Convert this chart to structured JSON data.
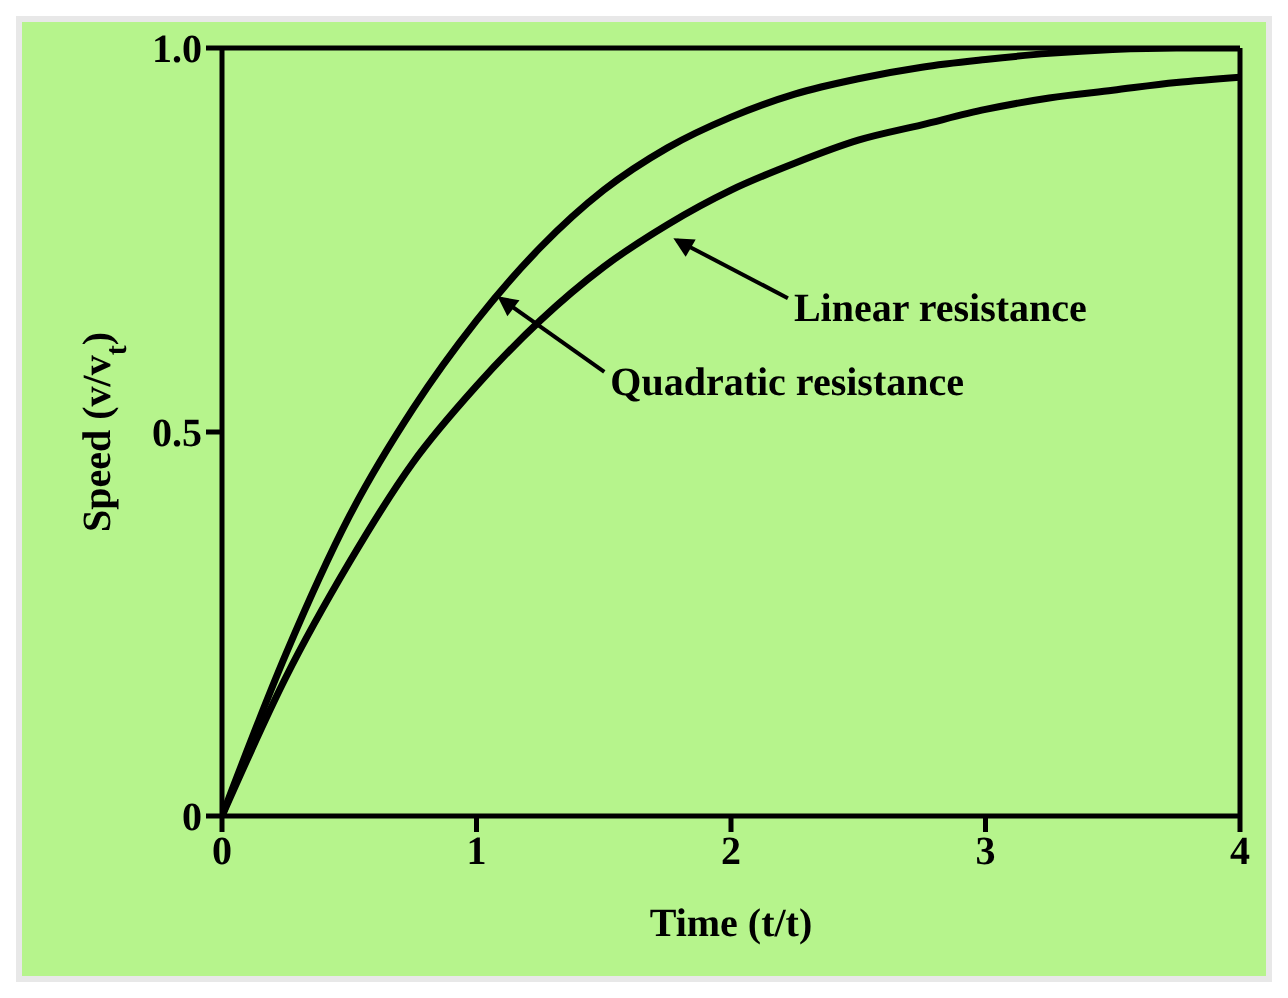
{
  "chart_data": {
    "type": "line",
    "xlabel": "Time (t/t)",
    "ylabel": "Speed (v/v$_{t}$)",
    "x": [
      0,
      0.25,
      0.5,
      0.75,
      1,
      1.25,
      1.5,
      1.75,
      2,
      2.25,
      2.5,
      2.75,
      3,
      3.25,
      3.5,
      3.75,
      4
    ],
    "series": [
      {
        "color": "#000000",
        "values": [
          0,
          0.21,
          0.39,
          0.53,
          0.645,
          0.74,
          0.815,
          0.87,
          0.91,
          0.94,
          0.96,
          0.975,
          0.985,
          0.993,
          0.998,
          1,
          1
        ]
      },
      {
        "color": "#000000",
        "values": [
          0,
          0.18,
          0.33,
          0.46,
          0.56,
          0.645,
          0.715,
          0.77,
          0.815,
          0.85,
          0.88,
          0.9,
          0.92,
          0.935,
          0.945,
          0.955,
          0.962
        ]
      }
    ],
    "xlim": [
      0,
      4
    ],
    "xticks": [
      0,
      1,
      2,
      3,
      4
    ],
    "ylim": [
      0,
      1
    ],
    "yticks": [
      0,
      {
        "value": 0.5,
        "label": "0.5"
      },
      {
        "value": 1,
        "label": "1.0"
      }
    ],
    "annotations": [
      {
        "text": "Linear resistance",
        "x": 1.76,
        "y": 0.755
      },
      {
        "text": "Quadratic resistance",
        "x": 1.07,
        "y": 0.68
      }
    ],
    "marker": "none",
    "line_style": "solid"
  }
}
